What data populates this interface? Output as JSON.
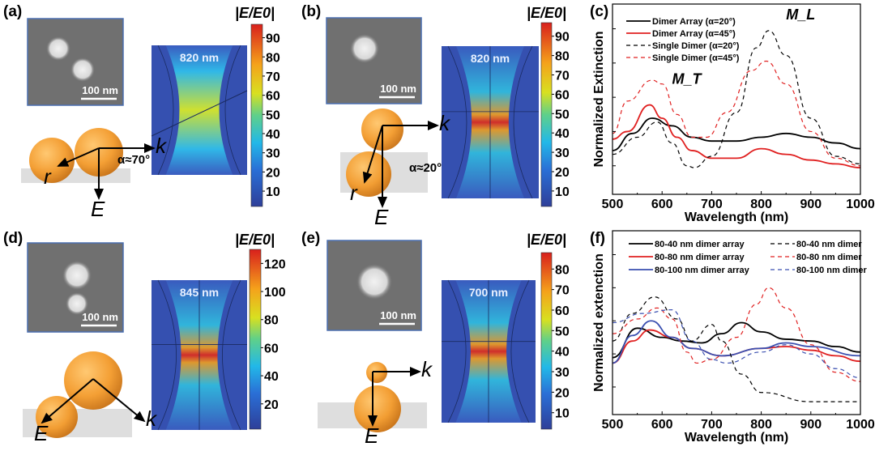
{
  "panels": [
    {
      "label": "(a)",
      "scale_bar": "100 nm",
      "wavelength": "820 nm",
      "colorbar_title": "|E/E0|",
      "colorbar_ticks": [
        10,
        20,
        30,
        40,
        50,
        60,
        70,
        80,
        90
      ],
      "colorbar_range": [
        2,
        97
      ],
      "vectors": {
        "k": "k",
        "E": "E",
        "r": "r",
        "angle": "α≈70°"
      }
    },
    {
      "label": "(b)",
      "scale_bar": "100 nm",
      "wavelength": "820 nm",
      "colorbar_title": "|E/E0|",
      "colorbar_ticks": [
        10,
        20,
        30,
        40,
        50,
        60,
        70,
        80,
        90
      ],
      "colorbar_range": [
        2,
        97
      ],
      "vectors": {
        "k": "k",
        "E": "E",
        "r": "r",
        "angle": "α≈20°"
      }
    },
    {
      "label": "(d)",
      "scale_bar": "100 nm",
      "wavelength": "845 nm",
      "colorbar_title": "|E/E0|",
      "colorbar_ticks": [
        20,
        40,
        60,
        80,
        100,
        120
      ],
      "colorbar_range": [
        2,
        130
      ],
      "vectors": {
        "k": "k",
        "E": "E"
      }
    },
    {
      "label": "(e)",
      "scale_bar": "100 nm",
      "wavelength": "700 nm",
      "colorbar_title": "|E/E0|",
      "colorbar_ticks": [
        10,
        20,
        30,
        40,
        50,
        60,
        70,
        80
      ],
      "colorbar_range": [
        2,
        88
      ],
      "vectors": {
        "k": "k",
        "E": "E"
      }
    }
  ],
  "chart_data": [
    {
      "panel_label": "(c)",
      "type": "line",
      "title": "",
      "xlabel": "Wavelength (nm)",
      "ylabel": "Normalized Extinction",
      "xlim": [
        500,
        1000
      ],
      "ylim": [
        0,
        1
      ],
      "xticks": [
        500,
        600,
        700,
        800,
        900,
        1000
      ],
      "legend_position": "top-left",
      "annotations": [
        {
          "text": "M_L",
          "x": 850,
          "y": 0.92
        },
        {
          "text": "M_T",
          "x": 620,
          "y": 0.58
        }
      ],
      "series": [
        {
          "name": "Dimer Array (α=20°)",
          "color": "#000000",
          "dash": false,
          "points": [
            [
              500,
              0.23
            ],
            [
              540,
              0.32
            ],
            [
              580,
              0.4
            ],
            [
              620,
              0.36
            ],
            [
              660,
              0.3
            ],
            [
              700,
              0.28
            ],
            [
              750,
              0.28
            ],
            [
              800,
              0.3
            ],
            [
              850,
              0.32
            ],
            [
              900,
              0.3
            ],
            [
              950,
              0.27
            ],
            [
              1000,
              0.24
            ]
          ]
        },
        {
          "name": "Dimer Array (α=45°)",
          "color": "#e02020",
          "dash": false,
          "points": [
            [
              500,
              0.29
            ],
            [
              530,
              0.33
            ],
            [
              575,
              0.47
            ],
            [
              600,
              0.4
            ],
            [
              630,
              0.3
            ],
            [
              660,
              0.23
            ],
            [
              700,
              0.19
            ],
            [
              750,
              0.19
            ],
            [
              800,
              0.24
            ],
            [
              850,
              0.21
            ],
            [
              900,
              0.18
            ],
            [
              950,
              0.16
            ],
            [
              1000,
              0.14
            ]
          ]
        },
        {
          "name": "Single Dimer (α=20°)",
          "color": "#000000",
          "dash": true,
          "points": [
            [
              500,
              0.21
            ],
            [
              550,
              0.3
            ],
            [
              590,
              0.38
            ],
            [
              620,
              0.27
            ],
            [
              650,
              0.15
            ],
            [
              665,
              0.14
            ],
            [
              700,
              0.2
            ],
            [
              750,
              0.43
            ],
            [
              790,
              0.77
            ],
            [
              815,
              0.86
            ],
            [
              850,
              0.73
            ],
            [
              900,
              0.4
            ],
            [
              950,
              0.2
            ],
            [
              1000,
              0.16
            ]
          ]
        },
        {
          "name": "Single Dimer (α=45°)",
          "color": "#e02020",
          "dash": true,
          "points": [
            [
              500,
              0.32
            ],
            [
              530,
              0.49
            ],
            [
              580,
              0.6
            ],
            [
              600,
              0.58
            ],
            [
              630,
              0.42
            ],
            [
              660,
              0.3
            ],
            [
              690,
              0.3
            ],
            [
              730,
              0.43
            ],
            [
              780,
              0.65
            ],
            [
              810,
              0.7
            ],
            [
              850,
              0.58
            ],
            [
              900,
              0.33
            ],
            [
              950,
              0.19
            ],
            [
              1000,
              0.15
            ]
          ]
        }
      ]
    },
    {
      "panel_label": "(f)",
      "type": "line",
      "title": "",
      "xlabel": "Wavelength (nm)",
      "ylabel": "Normalized extenction",
      "xlim": [
        500,
        1000
      ],
      "ylim": [
        0,
        1
      ],
      "xticks": [
        500,
        600,
        700,
        800,
        900,
        1000
      ],
      "legend_position": "top",
      "annotations": [],
      "series": [
        {
          "name": "80-40 nm dimer array",
          "color": "#000000",
          "dash": false,
          "points": [
            [
              500,
              0.31
            ],
            [
              550,
              0.47
            ],
            [
              600,
              0.42
            ],
            [
              640,
              0.4
            ],
            [
              680,
              0.39
            ],
            [
              720,
              0.44
            ],
            [
              760,
              0.5
            ],
            [
              800,
              0.45
            ],
            [
              850,
              0.41
            ],
            [
              900,
              0.4
            ],
            [
              950,
              0.37
            ],
            [
              1000,
              0.34
            ]
          ]
        },
        {
          "name": "80-80 nm dimer array",
          "color": "#e02020",
          "dash": false,
          "points": [
            [
              500,
              0.28
            ],
            [
              540,
              0.4
            ],
            [
              575,
              0.46
            ],
            [
              620,
              0.42
            ],
            [
              660,
              0.36
            ],
            [
              720,
              0.32
            ],
            [
              800,
              0.36
            ],
            [
              850,
              0.37
            ],
            [
              900,
              0.35
            ],
            [
              950,
              0.32
            ],
            [
              1000,
              0.29
            ]
          ]
        },
        {
          "name": "80-100 nm dimer array",
          "color": "#3a4fb0",
          "dash": false,
          "points": [
            [
              500,
              0.28
            ],
            [
              540,
              0.43
            ],
            [
              578,
              0.51
            ],
            [
              620,
              0.42
            ],
            [
              660,
              0.36
            ],
            [
              720,
              0.32
            ],
            [
              800,
              0.36
            ],
            [
              850,
              0.39
            ],
            [
              900,
              0.37
            ],
            [
              1000,
              0.32
            ]
          ]
        },
        {
          "name": "80-40 nm dimer",
          "color": "#000000",
          "dash": true,
          "points": [
            [
              500,
              0.4
            ],
            [
              540,
              0.55
            ],
            [
              585,
              0.64
            ],
            [
              630,
              0.52
            ],
            [
              660,
              0.4
            ],
            [
              700,
              0.49
            ],
            [
              720,
              0.4
            ],
            [
              760,
              0.22
            ],
            [
              800,
              0.12
            ],
            [
              900,
              0.07
            ],
            [
              1000,
              0.07
            ]
          ]
        },
        {
          "name": "80-80 nm dimer",
          "color": "#e02020",
          "dash": true,
          "points": [
            [
              500,
              0.44
            ],
            [
              550,
              0.52
            ],
            [
              590,
              0.58
            ],
            [
              620,
              0.52
            ],
            [
              650,
              0.34
            ],
            [
              670,
              0.28
            ],
            [
              700,
              0.3
            ],
            [
              750,
              0.42
            ],
            [
              790,
              0.6
            ],
            [
              815,
              0.69
            ],
            [
              850,
              0.58
            ],
            [
              900,
              0.38
            ],
            [
              950,
              0.23
            ],
            [
              1000,
              0.18
            ]
          ]
        },
        {
          "name": "80-100 nm dimer",
          "color": "#3a4fb0",
          "dash": true,
          "points": [
            [
              500,
              0.5
            ],
            [
              560,
              0.55
            ],
            [
              620,
              0.57
            ],
            [
              660,
              0.4
            ],
            [
              700,
              0.3
            ],
            [
              730,
              0.28
            ],
            [
              800,
              0.34
            ],
            [
              850,
              0.38
            ],
            [
              900,
              0.33
            ],
            [
              950,
              0.25
            ],
            [
              1000,
              0.2
            ]
          ]
        }
      ]
    }
  ]
}
